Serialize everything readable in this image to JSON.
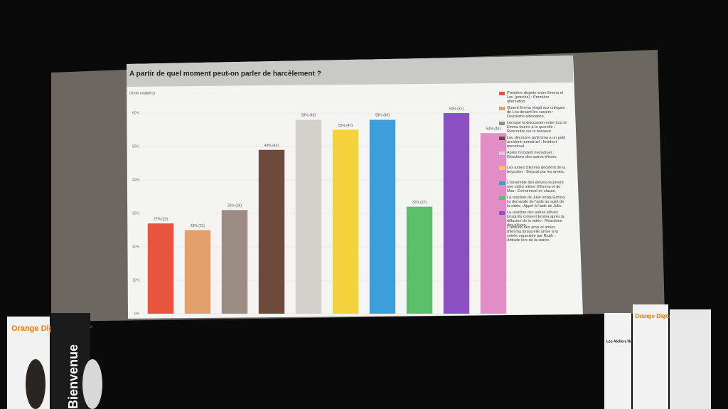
{
  "chart_data": {
    "type": "bar",
    "title": "A partir de quel moment peut-on parler de harcèlement ?",
    "subtitle": "(choix multiples)",
    "categories": [
      "Première dispute entre Emma et Lou (poncho) : Première altercation.",
      "Quand Emma réagit aux critiques de Lou devant les casiers : Deuxième altercation.",
      "Lorsque la discussion entre Lou et Emma tourne à la querelle : Rencontre sur la terrasse.",
      "Lou découvre qu'Emma a un petit accident menstruel : Incident menstruel.",
      "Après l'incident menstruel : Réactions des autres élèves.",
      "Les amies d'Emma décident de la boycotter : Boycott par les amies.",
      "L'ensemble des élèves reçoivent une vidéo intime d'Emma et de Max : Événement en classe.",
      "La réaction de Julie lorsqu'Emma lui demande de l'aide au sujet de la vidéo : Appel à l'aide de Julie.",
      "La réaction des autres élèves lorsqu'ils croisent Emma après la diffusion de la vidéo : Réactions des élèves.",
      "L'attitude des amis et amies d'Emma lorsqu'elle arrive à la soirée organisée par Raph : Attitude lors de la soirée."
    ],
    "values": [
      27,
      25,
      31,
      49,
      58,
      55,
      58,
      32,
      60,
      54
    ],
    "value_labels": [
      "27% (23)",
      "25% (21)",
      "31% (26)",
      "49% (42)",
      "58% (49)",
      "55% (47)",
      "58% (49)",
      "32% (27)",
      "60% (51)",
      "54% (46)"
    ],
    "colors": [
      "#e8553e",
      "#e3a06c",
      "#9b8c84",
      "#6e4a3c",
      "#d3cfca",
      "#f4d23c",
      "#3d9fd9",
      "#5cbf6a",
      "#8a4fc0",
      "#e38dc6"
    ],
    "ylim": [
      0,
      60
    ],
    "yticks": [
      {
        "value": 0,
        "label": "0%"
      },
      {
        "value": 10,
        "label": "10%"
      },
      {
        "value": 20,
        "label": "20%"
      },
      {
        "value": 30,
        "label": "30%"
      },
      {
        "value": 40,
        "label": "40%"
      },
      {
        "value": 50,
        "label": "50%"
      },
      {
        "value": 60,
        "label": "60%"
      }
    ],
    "grid": true
  },
  "scene": {
    "left_banner": "Orange Digital Center",
    "left_banner_side": "Bienvenue",
    "right_banner_1": "Les Ateliers Numériques",
    "right_banner_2": "Orange Digital Center"
  }
}
